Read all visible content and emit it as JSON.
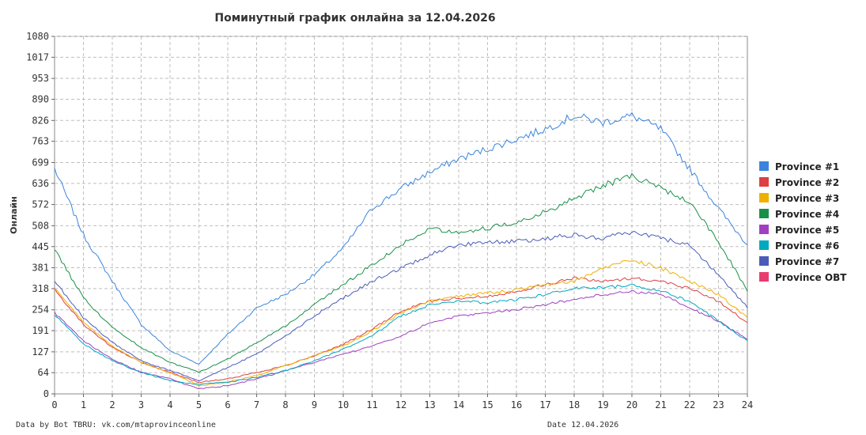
{
  "chart_data": {
    "type": "line",
    "title": "Поминутный график онлайна за 12.04.2026",
    "ylabel": "Онлайн",
    "xlabel": "",
    "x_ticks": [
      "0",
      "1",
      "2",
      "3",
      "4",
      "5",
      "6",
      "7",
      "8",
      "9",
      "10",
      "11",
      "12",
      "13",
      "14",
      "15",
      "16",
      "17",
      "18",
      "19",
      "20",
      "21",
      "22",
      "23",
      "24"
    ],
    "y_ticks": [
      "0",
      "64",
      "127",
      "191",
      "254",
      "318",
      "381",
      "445",
      "508",
      "572",
      "636",
      "699",
      "763",
      "826",
      "890",
      "953",
      "1017",
      "1080"
    ],
    "xlim": [
      0,
      24
    ],
    "ylim": [
      0,
      1080
    ],
    "grid": true,
    "legend_position": "right",
    "x": [
      0,
      1,
      2,
      3,
      4,
      5,
      6,
      7,
      8,
      9,
      10,
      11,
      12,
      13,
      14,
      15,
      16,
      17,
      18,
      19,
      20,
      21,
      22,
      23,
      24
    ],
    "series": [
      {
        "name": "Province #1",
        "color": "#3a84dc",
        "values": [
          680,
          480,
          340,
          210,
          130,
          90,
          180,
          260,
          300,
          360,
          440,
          560,
          620,
          670,
          710,
          740,
          770,
          800,
          840,
          820,
          840,
          800,
          680,
          560,
          450
        ]
      },
      {
        "name": "Province #2",
        "color": "#dc4040",
        "values": [
          315,
          210,
          140,
          95,
          65,
          35,
          45,
          65,
          85,
          115,
          150,
          195,
          250,
          280,
          290,
          295,
          310,
          330,
          350,
          340,
          350,
          340,
          320,
          280,
          215
        ]
      },
      {
        "name": "Province #3",
        "color": "#f0b000",
        "values": [
          320,
          215,
          145,
          95,
          65,
          25,
          35,
          55,
          85,
          115,
          145,
          190,
          245,
          280,
          295,
          305,
          315,
          330,
          340,
          380,
          405,
          380,
          340,
          300,
          230
        ]
      },
      {
        "name": "Province #4",
        "color": "#189048",
        "values": [
          435,
          290,
          200,
          140,
          95,
          65,
          105,
          155,
          205,
          270,
          330,
          390,
          450,
          500,
          490,
          500,
          520,
          550,
          590,
          630,
          660,
          620,
          580,
          460,
          310
        ]
      },
      {
        "name": "Province #5",
        "color": "#a040c0",
        "values": [
          245,
          160,
          105,
          65,
          45,
          15,
          25,
          45,
          70,
          95,
          120,
          145,
          175,
          215,
          235,
          245,
          255,
          270,
          285,
          300,
          310,
          300,
          260,
          220,
          165
        ]
      },
      {
        "name": "Province #6",
        "color": "#00a8c0",
        "values": [
          240,
          150,
          100,
          65,
          40,
          28,
          35,
          50,
          70,
          100,
          135,
          175,
          235,
          270,
          280,
          275,
          285,
          300,
          320,
          320,
          330,
          310,
          280,
          220,
          160
        ]
      },
      {
        "name": "Province #7",
        "color": "#4a5cb8",
        "values": [
          340,
          230,
          155,
          100,
          70,
          40,
          80,
          120,
          175,
          235,
          290,
          340,
          380,
          420,
          450,
          460,
          460,
          470,
          480,
          470,
          490,
          470,
          450,
          360,
          260
        ]
      },
      {
        "name": "Province OBT",
        "color": "#e83c70",
        "values": [
          null,
          null,
          null,
          null,
          null,
          null,
          null,
          null,
          null,
          null,
          null,
          null,
          null,
          null,
          null,
          null,
          null,
          null,
          null,
          null,
          null,
          null,
          null,
          null,
          null
        ]
      }
    ]
  },
  "footer": {
    "source": "Data by Bot TBRU: vk.com/mtaprovinceonline",
    "date": "Date 12.04.2026"
  }
}
